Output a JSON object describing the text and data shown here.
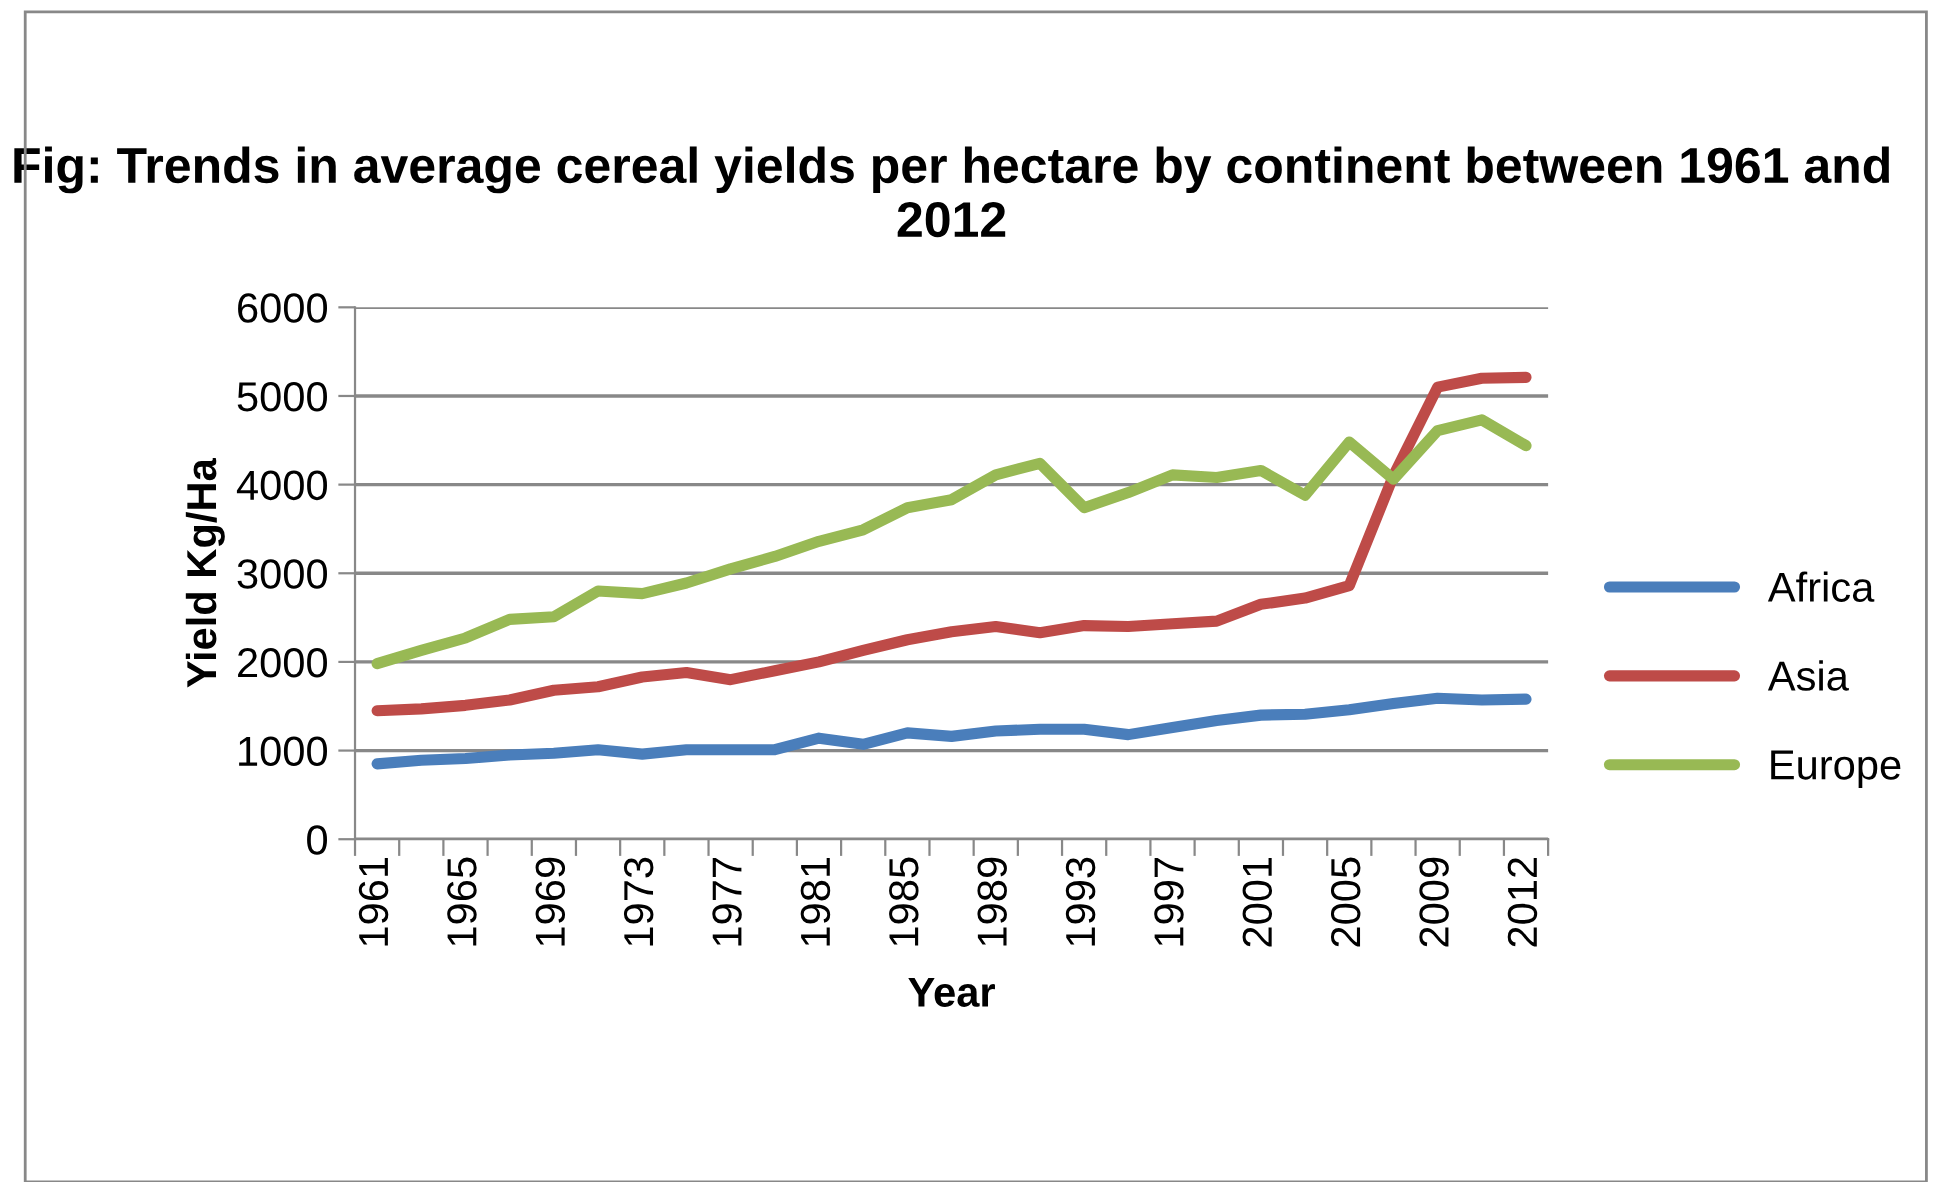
{
  "chart_data": {
    "type": "line",
    "title": "Fig: Trends in average cereal yields per hectare by continent between 1961 and 2012",
    "xlabel": "Year",
    "ylabel": "Yield Kg/Ha",
    "categories": [
      "1961",
      null,
      "1965",
      null,
      "1969",
      null,
      "1973",
      null,
      "1977",
      null,
      "1981",
      null,
      "1985",
      null,
      "1989",
      null,
      "1993",
      null,
      "1997",
      null,
      "2001",
      null,
      "2005",
      null,
      "2009",
      null,
      "2012"
    ],
    "series": [
      {
        "name": "Africa",
        "color": "#4a7ebb",
        "values": [
          850,
          890,
          910,
          950,
          970,
          1010,
          960,
          1010,
          1010,
          1010,
          1140,
          1070,
          1200,
          1160,
          1220,
          1240,
          1240,
          1180,
          1260,
          1340,
          1400,
          1410,
          1460,
          1530,
          1590,
          1570,
          1580
        ]
      },
      {
        "name": "Asia",
        "color": "#be4b48",
        "values": [
          1450,
          1470,
          1510,
          1570,
          1680,
          1720,
          1830,
          1880,
          1800,
          1900,
          2000,
          2130,
          2250,
          2340,
          2400,
          2330,
          2410,
          2400,
          2430,
          2460,
          2650,
          2720,
          2860,
          4100,
          5100,
          5200,
          5210
        ]
      },
      {
        "name": "Europe",
        "color": "#98b954",
        "values": [
          1980,
          2130,
          2270,
          2480,
          2510,
          2800,
          2770,
          2890,
          3050,
          3190,
          3360,
          3490,
          3740,
          3830,
          4110,
          4240,
          3740,
          3910,
          4110,
          4080,
          4160,
          3880,
          4480,
          4060,
          4610,
          4730,
          4440
        ]
      }
    ],
    "ylim": [
      0,
      6000
    ],
    "yticks": [
      0,
      1000,
      2000,
      3000,
      4000,
      5000,
      6000
    ],
    "grid": "y",
    "legend": "right",
    "marker": "none",
    "line_style": "solid"
  }
}
